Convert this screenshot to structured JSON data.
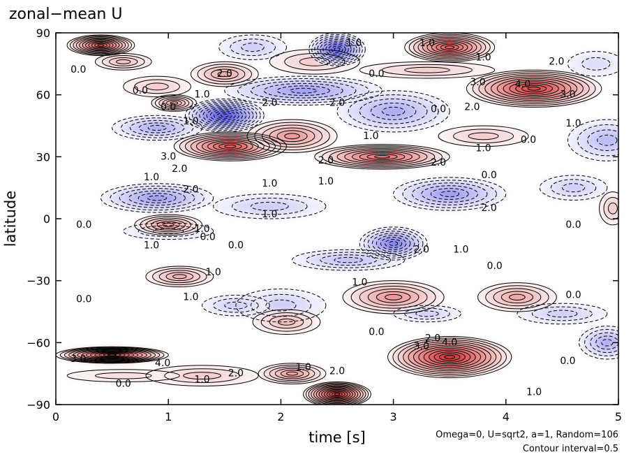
{
  "chart_data": {
    "type": "heatmap",
    "title": "zonal−mean U",
    "xlabel": "time [s]",
    "ylabel": "latitude",
    "xlim": [
      0,
      5
    ],
    "ylim": [
      -90,
      90
    ],
    "x_ticks": [
      "0",
      "1",
      "2",
      "3",
      "4",
      "5"
    ],
    "y_ticks": [
      "−90",
      "−60",
      "−30",
      "0",
      "30",
      "60",
      "90"
    ],
    "annotations": [
      "Omega=0, U=sqrt2, a=1, Random=106",
      "Contour interval=0.5"
    ],
    "contour_interval": 0.5,
    "colors": {
      "positive": "#cc0000",
      "negative": "#1010cc",
      "zero": "#ffffff"
    },
    "contour_labels": [
      {
        "t": 0.2,
        "lat": 72,
        "text": "0.0"
      },
      {
        "t": 0.75,
        "lat": 62,
        "text": "0.0"
      },
      {
        "t": 1.5,
        "lat": 70,
        "text": "2.0"
      },
      {
        "t": 1.3,
        "lat": 60,
        "text": "1.0"
      },
      {
        "t": 1.9,
        "lat": 56,
        "text": "2.0"
      },
      {
        "t": 2.5,
        "lat": 56,
        "text": "2.0"
      },
      {
        "t": 2.85,
        "lat": 70,
        "text": "0.0"
      },
      {
        "t": 2.65,
        "lat": 85,
        "text": "1.0"
      },
      {
        "t": 3.3,
        "lat": 85,
        "text": "1.0"
      },
      {
        "t": 3.8,
        "lat": 78,
        "text": "1.0"
      },
      {
        "t": 4.45,
        "lat": 76,
        "text": "2.0"
      },
      {
        "t": 3.75,
        "lat": 66,
        "text": "3.0"
      },
      {
        "t": 4.15,
        "lat": 65,
        "text": "4.0"
      },
      {
        "t": 4.55,
        "lat": 60,
        "text": "3.0"
      },
      {
        "t": 3.7,
        "lat": 54,
        "text": "2.0"
      },
      {
        "t": 3.4,
        "lat": 53,
        "text": "0.0"
      },
      {
        "t": 2.8,
        "lat": 40,
        "text": "1.0"
      },
      {
        "t": 4.6,
        "lat": 46,
        "text": "1.0"
      },
      {
        "t": 4.2,
        "lat": 38,
        "text": "0.0"
      },
      {
        "t": 3.8,
        "lat": 34,
        "text": "1.0"
      },
      {
        "t": 1.2,
        "lat": 47,
        "text": "1.0"
      },
      {
        "t": 1.0,
        "lat": 54,
        "text": "0.0"
      },
      {
        "t": 1.0,
        "lat": 30,
        "text": "3.0"
      },
      {
        "t": 1.1,
        "lat": 24,
        "text": "2.0"
      },
      {
        "t": 0.85,
        "lat": 20,
        "text": "1.0"
      },
      {
        "t": 1.2,
        "lat": 14,
        "text": "2.0"
      },
      {
        "t": 1.9,
        "lat": 17,
        "text": "1.0"
      },
      {
        "t": 2.4,
        "lat": 18,
        "text": "1.0"
      },
      {
        "t": 2.4,
        "lat": 28,
        "text": "2.0"
      },
      {
        "t": 3.4,
        "lat": 27,
        "text": "2.0"
      },
      {
        "t": 3.85,
        "lat": 21,
        "text": "0.0"
      },
      {
        "t": 3.85,
        "lat": 5,
        "text": "2.0"
      },
      {
        "t": 1.9,
        "lat": 2,
        "text": "1.0"
      },
      {
        "t": 0.25,
        "lat": -3,
        "text": "0.0"
      },
      {
        "t": 1.3,
        "lat": -5,
        "text": "1.0"
      },
      {
        "t": 1.35,
        "lat": -9,
        "text": "0.0"
      },
      {
        "t": 0.85,
        "lat": -13,
        "text": "1.0"
      },
      {
        "t": 1.6,
        "lat": -13,
        "text": "0.0"
      },
      {
        "t": 3.25,
        "lat": -15,
        "text": "2.0"
      },
      {
        "t": 3.6,
        "lat": -15,
        "text": "1.0"
      },
      {
        "t": 3.9,
        "lat": -23,
        "text": "0.0"
      },
      {
        "t": 4.6,
        "lat": -3,
        "text": "0.0"
      },
      {
        "t": 1.4,
        "lat": -26,
        "text": "1.0"
      },
      {
        "t": 2.7,
        "lat": -31,
        "text": "1.0"
      },
      {
        "t": 0.25,
        "lat": -39,
        "text": "0.0"
      },
      {
        "t": 1.2,
        "lat": -38,
        "text": "1.0"
      },
      {
        "t": 4.6,
        "lat": -37,
        "text": "0.0"
      },
      {
        "t": 2.85,
        "lat": -55,
        "text": "0.0"
      },
      {
        "t": 3.25,
        "lat": -62,
        "text": "3.0"
      },
      {
        "t": 3.35,
        "lat": -58,
        "text": "2.0"
      },
      {
        "t": 3.5,
        "lat": -60,
        "text": "4.0"
      },
      {
        "t": 4.55,
        "lat": -69,
        "text": "0.0"
      },
      {
        "t": 4.25,
        "lat": -84,
        "text": "1.0"
      },
      {
        "t": 0.2,
        "lat": -68,
        "text": "3.0"
      },
      {
        "t": 0.95,
        "lat": -70,
        "text": "4.0"
      },
      {
        "t": 0.6,
        "lat": -80,
        "text": "0.0"
      },
      {
        "t": 1.3,
        "lat": -78,
        "text": "1.0"
      },
      {
        "t": 1.6,
        "lat": -75,
        "text": "2.0"
      },
      {
        "t": 2.2,
        "lat": -72,
        "text": "1.0"
      },
      {
        "t": 2.5,
        "lat": -74,
        "text": "2.0"
      }
    ],
    "cells": [
      {
        "t": 0.4,
        "lat": 84,
        "v": 5.5,
        "rt": 0.3,
        "rl": 5
      },
      {
        "t": 0.6,
        "lat": 76,
        "v": 2.0,
        "rt": 0.25,
        "rl": 4
      },
      {
        "t": 0.9,
        "lat": 64,
        "v": 1.5,
        "rt": 0.3,
        "rl": 5
      },
      {
        "t": 1.05,
        "lat": 56,
        "v": 3.0,
        "rt": 0.2,
        "rl": 4
      },
      {
        "t": 1.5,
        "lat": 70,
        "v": 2.5,
        "rt": 0.3,
        "rl": 6
      },
      {
        "t": 2.3,
        "lat": 76,
        "v": 1.5,
        "rt": 0.4,
        "rl": 6
      },
      {
        "t": 2.5,
        "lat": 82,
        "v": -5.0,
        "rt": 0.25,
        "rl": 8
      },
      {
        "t": 1.75,
        "lat": 83,
        "v": -1.5,
        "rt": 0.3,
        "rl": 6
      },
      {
        "t": 3.5,
        "lat": 83,
        "v": 5.0,
        "rt": 0.4,
        "rl": 7
      },
      {
        "t": 3.3,
        "lat": 72,
        "v": 1.5,
        "rt": 0.6,
        "rl": 4
      },
      {
        "t": 4.25,
        "lat": 63,
        "v": 5.5,
        "rt": 0.6,
        "rl": 9
      },
      {
        "t": 4.8,
        "lat": 75,
        "v": -1.0,
        "rt": 0.25,
        "rl": 6
      },
      {
        "t": 1.5,
        "lat": 50,
        "v": -5.5,
        "rt": 0.35,
        "rl": 8
      },
      {
        "t": 0.9,
        "lat": 44,
        "v": -2.5,
        "rt": 0.4,
        "rl": 6
      },
      {
        "t": 2.2,
        "lat": 62,
        "v": -3.0,
        "rt": 0.7,
        "rl": 7
      },
      {
        "t": 3.0,
        "lat": 52,
        "v": -2.5,
        "rt": 0.5,
        "rl": 10
      },
      {
        "t": 4.9,
        "lat": 38,
        "v": -2.0,
        "rt": 0.35,
        "rl": 10
      },
      {
        "t": 1.55,
        "lat": 35,
        "v": 5.0,
        "rt": 0.5,
        "rl": 7
      },
      {
        "t": 2.1,
        "lat": 40,
        "v": 3.0,
        "rt": 0.4,
        "rl": 8
      },
      {
        "t": 2.9,
        "lat": 30,
        "v": 4.5,
        "rt": 0.6,
        "rl": 6
      },
      {
        "t": 3.8,
        "lat": 40,
        "v": 1.5,
        "rt": 0.4,
        "rl": 5
      },
      {
        "t": 0.9,
        "lat": 10,
        "v": -3.0,
        "rt": 0.5,
        "rl": 7
      },
      {
        "t": 1.9,
        "lat": 6,
        "v": -1.5,
        "rt": 0.5,
        "rl": 6
      },
      {
        "t": 3.5,
        "lat": 12,
        "v": -3.0,
        "rt": 0.5,
        "rl": 8
      },
      {
        "t": 4.6,
        "lat": 15,
        "v": -1.5,
        "rt": 0.3,
        "rl": 6
      },
      {
        "t": 3.0,
        "lat": -12,
        "v": -4.0,
        "rt": 0.3,
        "rl": 8
      },
      {
        "t": 1.0,
        "lat": -6,
        "v": -1.5,
        "rt": 0.4,
        "rl": 4
      },
      {
        "t": 1.0,
        "lat": -3,
        "v": 3.0,
        "rt": 0.3,
        "rl": 5
      },
      {
        "t": 4.95,
        "lat": 5,
        "v": 1.5,
        "rt": 0.12,
        "rl": 8
      },
      {
        "t": 1.1,
        "lat": -28,
        "v": 2.5,
        "rt": 0.3,
        "rl": 5
      },
      {
        "t": 2.6,
        "lat": -20,
        "v": -2.0,
        "rt": 0.5,
        "rl": 5
      },
      {
        "t": 3.0,
        "lat": -38,
        "v": 3.0,
        "rt": 0.45,
        "rl": 8
      },
      {
        "t": 2.0,
        "lat": -42,
        "v": -1.5,
        "rt": 0.4,
        "rl": 8
      },
      {
        "t": 4.1,
        "lat": -38,
        "v": 2.5,
        "rt": 0.35,
        "rl": 7
      },
      {
        "t": 1.6,
        "lat": -42,
        "v": -1.5,
        "rt": 0.3,
        "rl": 5
      },
      {
        "t": 2.05,
        "lat": -50,
        "v": 2.0,
        "rt": 0.3,
        "rl": 6
      },
      {
        "t": 3.5,
        "lat": -67,
        "v": 6.0,
        "rt": 0.55,
        "rl": 10
      },
      {
        "t": 4.9,
        "lat": -60,
        "v": -2.5,
        "rt": 0.25,
        "rl": 8
      },
      {
        "t": 0.5,
        "lat": -66,
        "v": 6.5,
        "rt": 0.5,
        "rl": 4
      },
      {
        "t": 2.5,
        "lat": -85,
        "v": 6.5,
        "rt": 0.3,
        "rl": 6
      },
      {
        "t": 1.3,
        "lat": -76,
        "v": 1.5,
        "rt": 0.5,
        "rl": 5
      },
      {
        "t": 2.1,
        "lat": -75,
        "v": 3.0,
        "rt": 0.3,
        "rl": 5
      },
      {
        "t": 0.6,
        "lat": -76,
        "v": 1.0,
        "rt": 0.5,
        "rl": 3
      },
      {
        "t": 4.5,
        "lat": -46,
        "v": -1.5,
        "rt": 0.4,
        "rl": 5
      },
      {
        "t": 3.3,
        "lat": -46,
        "v": -1.5,
        "rt": 0.3,
        "rl": 4
      }
    ]
  }
}
